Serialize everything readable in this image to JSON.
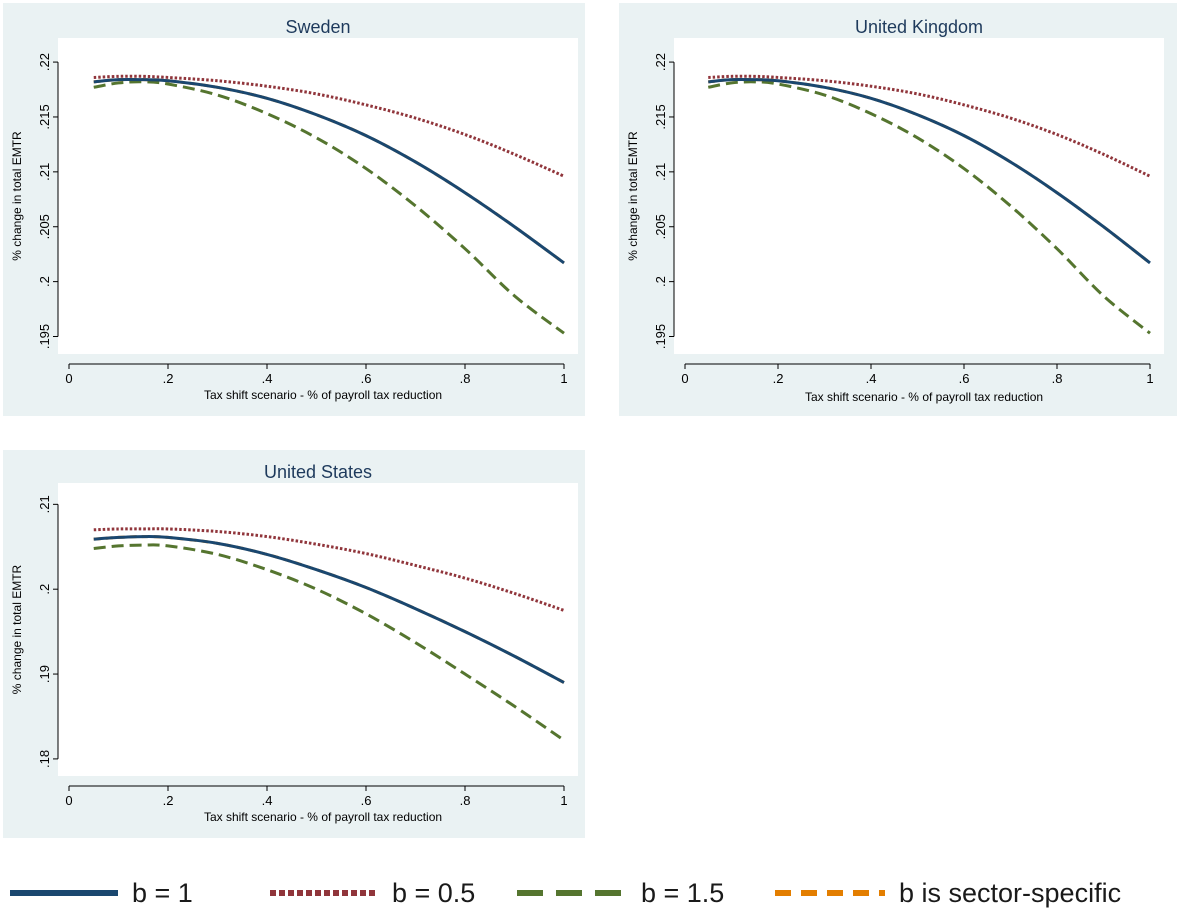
{
  "chart_data": [
    {
      "type": "line",
      "title": "Sweden",
      "xlabel": "Tax shift scenario - % of payroll tax reduction",
      "ylabel": "% change in total EMTR",
      "xlim": [
        0,
        1
      ],
      "ylim": [
        0.1945,
        0.2211
      ],
      "xticks": [
        0,
        0.2,
        0.4,
        0.6,
        0.8,
        1
      ],
      "xtick_labels": [
        "0",
        ".2",
        ".4",
        ".6",
        ".8",
        "1"
      ],
      "yticks": [
        0.195,
        0.2,
        0.205,
        0.21,
        0.215,
        0.22
      ],
      "ytick_labels": [
        ".195",
        ".2",
        ".205",
        ".21",
        ".215",
        ".22"
      ],
      "grid": false,
      "x": [
        0.05,
        0.1,
        0.15,
        0.2,
        0.3,
        0.4,
        0.5,
        0.6,
        0.7,
        0.8,
        0.9,
        1.0
      ],
      "series": [
        {
          "name": "b = 1",
          "values": [
            0.2182,
            0.2184,
            0.2184,
            0.2183,
            0.2177,
            0.2167,
            0.2152,
            0.2133,
            0.2109,
            0.2081,
            0.205,
            0.2017
          ]
        },
        {
          "name": "b = 0.5",
          "values": [
            0.2186,
            0.2187,
            0.2187,
            0.2186,
            0.2183,
            0.2178,
            0.2171,
            0.2161,
            0.2149,
            0.2134,
            0.2116,
            0.2096
          ]
        },
        {
          "name": "b = 1.5",
          "values": [
            0.2177,
            0.2181,
            0.2182,
            0.218,
            0.217,
            0.2153,
            0.2131,
            0.2103,
            0.2069,
            0.203,
            0.1987,
            0.1953
          ]
        },
        {
          "name": "b is sector-specific",
          "values": [
            0.2182,
            0.2184,
            0.2184,
            0.2183,
            0.2177,
            0.2167,
            0.2152,
            0.2133,
            0.2109,
            0.2081,
            0.205,
            0.2017
          ]
        }
      ]
    },
    {
      "type": "line",
      "title": "United Kingdom",
      "xlabel": "Tax shift scenario - % of payroll tax reduction",
      "ylabel": "% change in total EMTR",
      "xlim": [
        0,
        1
      ],
      "ylim": [
        0.1945,
        0.2211
      ],
      "xticks": [
        0,
        0.2,
        0.4,
        0.6,
        0.8,
        1
      ],
      "xtick_labels": [
        "0",
        ".2",
        ".4",
        ".6",
        ".8",
        "1"
      ],
      "yticks": [
        0.195,
        0.2,
        0.205,
        0.21,
        0.215,
        0.22
      ],
      "ytick_labels": [
        ".195",
        ".2",
        ".205",
        ".21",
        ".215",
        ".22"
      ],
      "grid": false,
      "x": [
        0.05,
        0.1,
        0.15,
        0.2,
        0.3,
        0.4,
        0.5,
        0.6,
        0.7,
        0.8,
        0.9,
        1.0
      ],
      "series": [
        {
          "name": "b = 1",
          "values": [
            0.2182,
            0.2184,
            0.2184,
            0.2183,
            0.2177,
            0.2167,
            0.2152,
            0.2133,
            0.2109,
            0.2081,
            0.205,
            0.2017
          ]
        },
        {
          "name": "b = 0.5",
          "values": [
            0.2186,
            0.2187,
            0.2187,
            0.2186,
            0.2183,
            0.2178,
            0.2171,
            0.2161,
            0.2149,
            0.2134,
            0.2116,
            0.2096
          ]
        },
        {
          "name": "b = 1.5",
          "values": [
            0.2177,
            0.2181,
            0.2182,
            0.218,
            0.217,
            0.2153,
            0.2131,
            0.2103,
            0.2069,
            0.203,
            0.1987,
            0.1953
          ]
        },
        {
          "name": "b is sector-specific",
          "values": [
            0.2182,
            0.2184,
            0.2184,
            0.2183,
            0.2177,
            0.2167,
            0.2152,
            0.2133,
            0.2109,
            0.2081,
            0.205,
            0.2017
          ]
        }
      ]
    },
    {
      "type": "line",
      "title": "United States",
      "xlabel": "Tax shift scenario - % of payroll tax reduction",
      "ylabel": "% change in total EMTR",
      "xlim": [
        0,
        1
      ],
      "ylim": [
        0.1794,
        0.2111
      ],
      "xticks": [
        0,
        0.2,
        0.4,
        0.6,
        0.8,
        1
      ],
      "xtick_labels": [
        "0",
        ".2",
        ".4",
        ".6",
        ".8",
        "1"
      ],
      "yticks": [
        0.18,
        0.19,
        0.2,
        0.21
      ],
      "ytick_labels": [
        ".18",
        ".19",
        ".2",
        ".21"
      ],
      "grid": false,
      "x": [
        0.05,
        0.1,
        0.15,
        0.2,
        0.3,
        0.4,
        0.5,
        0.6,
        0.7,
        0.8,
        0.9,
        1.0
      ],
      "series": [
        {
          "name": "b = 1",
          "values": [
            0.2059,
            0.2061,
            0.2062,
            0.2061,
            0.2054,
            0.2041,
            0.2023,
            0.2002,
            0.1977,
            0.195,
            0.1921,
            0.189
          ]
        },
        {
          "name": "b = 0.5",
          "values": [
            0.207,
            0.2071,
            0.2071,
            0.2071,
            0.2068,
            0.2062,
            0.2053,
            0.2042,
            0.2028,
            0.2013,
            0.1995,
            0.1975
          ]
        },
        {
          "name": "b = 1.5",
          "values": [
            0.2048,
            0.2051,
            0.2052,
            0.2051,
            0.2041,
            0.2023,
            0.2,
            0.1971,
            0.1937,
            0.19,
            0.1862,
            0.1822
          ]
        },
        {
          "name": "b is sector-specific",
          "values": [
            0.2059,
            0.2061,
            0.2062,
            0.2061,
            0.2054,
            0.2041,
            0.2023,
            0.2002,
            0.1977,
            0.195,
            0.1921,
            0.189
          ]
        }
      ]
    }
  ],
  "legend": {
    "placement": "bottom",
    "items": [
      {
        "label": "b = 1",
        "color": "#1a476f",
        "style": "solid"
      },
      {
        "label": "b = 0.5",
        "color": "#90353b",
        "style": "dotted"
      },
      {
        "label": "b = 1.5",
        "color": "#55752f",
        "style": "dashed"
      },
      {
        "label": "b is sector-specific",
        "color": "#e37e00",
        "style": "short-dash"
      }
    ]
  },
  "colors": {
    "panel_background": "#eaf2f3",
    "plot_background": "#ffffff",
    "axis": "#000000",
    "title": "#1e3a5c"
  }
}
